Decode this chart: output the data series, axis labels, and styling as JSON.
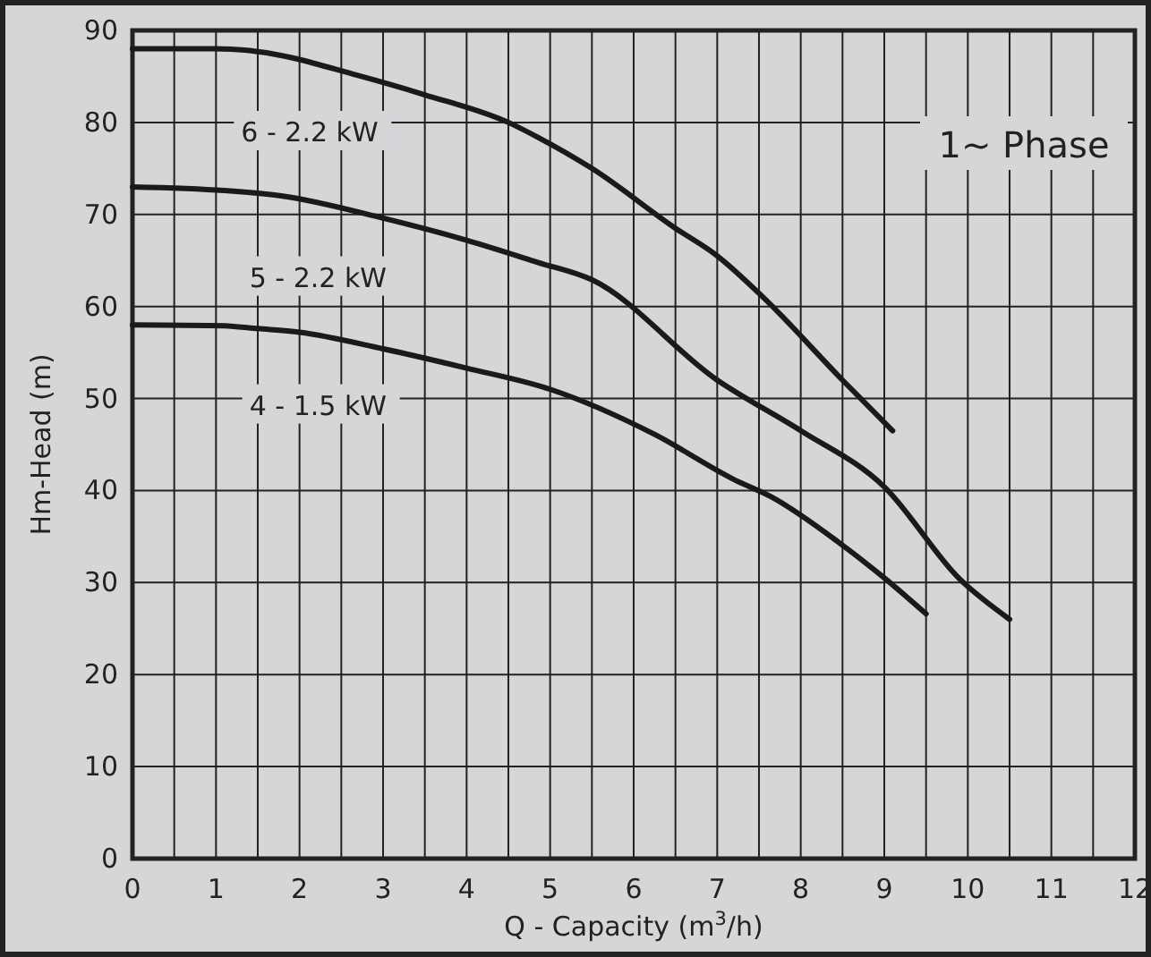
{
  "chart_data": {
    "type": "line",
    "xlabel": "Q - Capacity (m$^{3}$/h)",
    "ylabel": "Hm-Head (m)",
    "annotations": [
      "1~ Phase"
    ],
    "xlim": [
      0,
      12
    ],
    "ylim": [
      0,
      90
    ],
    "xticks": [
      0,
      {
        "value": 0.5,
        "label": null
      },
      1,
      {
        "value": 1.5,
        "label": null
      },
      2,
      {
        "value": 2.5,
        "label": null
      },
      3,
      {
        "value": 3.5,
        "label": null
      },
      4,
      {
        "value": 4.5,
        "label": null
      },
      5,
      {
        "value": 5.5,
        "label": null
      },
      6,
      {
        "value": 6.5,
        "label": null
      },
      7,
      {
        "value": 7.5,
        "label": null
      },
      8,
      {
        "value": 8.5,
        "label": null
      },
      9,
      {
        "value": 9.5,
        "label": null
      },
      10,
      {
        "value": 10.5,
        "label": null
      },
      11,
      {
        "value": 11.5,
        "label": null
      },
      12
    ],
    "yticks": [
      0,
      10,
      20,
      30,
      40,
      50,
      60,
      70,
      80,
      90
    ],
    "grid": true,
    "marker": "none",
    "line_style": "solid",
    "series": [
      {
        "name": "6 - 2.2 kW",
        "color": "#1a1a1a",
        "x": [
          0,
          1,
          1.5,
          2.7,
          3.5,
          4.5,
          4.85,
          5.5,
          6.5,
          7,
          7.55,
          8.5,
          9.1
        ],
        "values": [
          88,
          88,
          87.7,
          85.1,
          83,
          80,
          78.4,
          75,
          68.5,
          65.5,
          61,
          52,
          46.5
        ]
      },
      {
        "name": "5 - 2.2 kW",
        "color": "#1a1a1a",
        "x": [
          0,
          1.1,
          1.8,
          3,
          4,
          4.85,
          5.5,
          7,
          8,
          9,
          9.9,
          10.5
        ],
        "values": [
          73,
          72.6,
          72,
          69.6,
          67.2,
          64.8,
          62.9,
          52,
          46.5,
          40.4,
          30.4,
          26
        ]
      },
      {
        "name": "4 - 1.5 kW",
        "color": "#1a1a1a",
        "x": [
          0,
          1.1,
          1.5,
          2,
          3,
          4,
          5,
          6.25,
          7.2,
          7.65,
          8.45,
          9,
          9.5
        ],
        "values": [
          58,
          57.9,
          57.6,
          57.2,
          55.4,
          53.3,
          51,
          46.1,
          41.2,
          39.3,
          34.4,
          30.5,
          26.6
        ]
      }
    ]
  }
}
